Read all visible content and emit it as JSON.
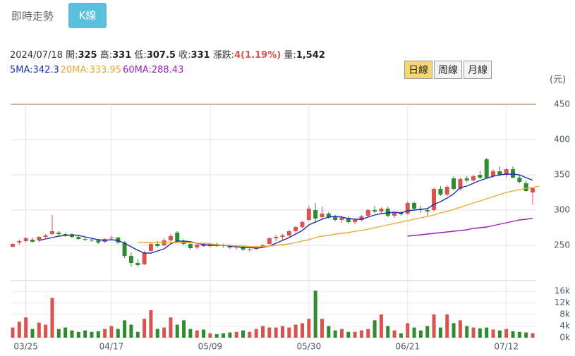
{
  "header": {
    "tabs": [
      "即時走勢",
      "K線"
    ],
    "active_tab": 1,
    "quote": {
      "date": "2024/07/18",
      "items": [
        {
          "label": "開:",
          "value": "325"
        },
        {
          "label": "高:",
          "value": "331"
        },
        {
          "label": "低:",
          "value": "307.5"
        },
        {
          "label": "收:",
          "value": "331"
        },
        {
          "label": "漲跌:",
          "value": "4(1.19%)"
        },
        {
          "label": "量:",
          "value": "1,542"
        }
      ]
    },
    "periods": [
      "日線",
      "周線",
      "月線"
    ],
    "active_period": 0,
    "unit": "(元)"
  },
  "chart_data": [
    {
      "type": "candlestick",
      "up_color": "#d9534f",
      "down_color": "#2e8b2e",
      "open": [
        248,
        254,
        256,
        258,
        257,
        262,
        266,
        268,
        266,
        265,
        262,
        259,
        258,
        257,
        255,
        260,
        261,
        254,
        235,
        225,
        223,
        242,
        252,
        250,
        257,
        268,
        256,
        252,
        247,
        251,
        249,
        252,
        250,
        249,
        247,
        247,
        244,
        245,
        248,
        252,
        260,
        262,
        264,
        270,
        276,
        286,
        300,
        290,
        295,
        290,
        286,
        289,
        283,
        286,
        292,
        300,
        298,
        302,
        292,
        296,
        295,
        310,
        302,
        300,
        300,
        330,
        322,
        345,
        330,
        345,
        342,
        350,
        372,
        348,
        355,
        350,
        358,
        346,
        338,
        325
      ],
      "high": [
        253,
        258,
        262,
        261,
        263,
        266,
        293,
        270,
        268,
        267,
        264,
        262,
        260,
        259,
        260,
        263,
        262,
        256,
        240,
        230,
        242,
        255,
        256,
        260,
        266,
        270,
        258,
        256,
        253,
        253,
        254,
        254,
        252,
        251,
        250,
        249,
        247,
        249,
        252,
        262,
        265,
        266,
        272,
        278,
        285,
        306,
        310,
        305,
        297,
        293,
        292,
        291,
        288,
        293,
        302,
        306,
        304,
        305,
        298,
        299,
        312,
        312,
        306,
        303,
        332,
        334,
        335,
        348,
        346,
        348,
        350,
        356,
        374,
        358,
        362,
        360,
        362,
        350,
        342,
        331
      ],
      "low": [
        247,
        251,
        254,
        254,
        255,
        260,
        264,
        264,
        262,
        260,
        258,
        256,
        255,
        252,
        253,
        257,
        252,
        232,
        220,
        219,
        222,
        241,
        247,
        249,
        255,
        254,
        250,
        244,
        245,
        248,
        247,
        248,
        247,
        245,
        244,
        242,
        241,
        243,
        246,
        251,
        256,
        258,
        262,
        268,
        274,
        284,
        282,
        286,
        288,
        284,
        282,
        281,
        280,
        284,
        290,
        296,
        294,
        290,
        289,
        292,
        293,
        300,
        296,
        292,
        298,
        320,
        320,
        328,
        328,
        340,
        340,
        344,
        344,
        346,
        348,
        346,
        345,
        338,
        326,
        307.5
      ],
      "close": [
        252,
        256,
        260,
        255,
        262,
        264,
        270,
        266,
        265,
        262,
        259,
        258,
        257,
        254,
        259,
        261,
        254,
        235,
        225,
        222,
        240,
        252,
        249,
        257,
        263,
        256,
        252,
        246,
        251,
        249,
        252,
        250,
        249,
        247,
        248,
        244,
        245,
        247,
        250,
        260,
        262,
        264,
        270,
        276,
        283,
        302,
        288,
        295,
        290,
        286,
        289,
        283,
        286,
        291,
        300,
        298,
        302,
        292,
        296,
        294,
        310,
        302,
        300,
        298,
        330,
        322,
        333,
        330,
        344,
        342,
        348,
        346,
        346,
        355,
        350,
        358,
        346,
        340,
        327,
        331
      ],
      "ylim": [
        200,
        450
      ],
      "yticks": [
        250,
        300,
        350,
        400,
        450
      ],
      "grid": true,
      "series": [
        {
          "name": "5MA:342.3",
          "color": "#1a2fb0",
          "values": [
            null,
            null,
            null,
            null,
            257,
            259,
            261,
            263,
            264,
            265,
            264,
            262,
            260,
            258,
            257,
            258,
            257,
            253,
            248,
            243,
            239,
            239,
            242,
            245,
            252,
            256,
            256,
            255,
            253,
            251,
            250,
            250,
            250,
            249,
            248,
            247,
            247,
            246,
            247,
            249,
            253,
            257,
            261,
            266,
            271,
            279,
            283,
            287,
            290,
            291,
            290,
            288,
            287,
            287,
            290,
            293,
            295,
            296,
            297,
            296,
            299,
            300,
            301,
            302,
            308,
            312,
            317,
            323,
            332,
            334,
            338,
            342,
            345,
            348,
            350,
            351,
            351,
            350,
            346,
            342.3
          ]
        },
        {
          "name": "20MA:333.95",
          "color": "#f0a830",
          "values": [
            null,
            null,
            null,
            null,
            null,
            null,
            null,
            null,
            null,
            null,
            null,
            null,
            null,
            null,
            null,
            null,
            null,
            null,
            null,
            254,
            254,
            254,
            254,
            254,
            254,
            254,
            254,
            254,
            253,
            253,
            252,
            251,
            250,
            250,
            249,
            249,
            248,
            248,
            248,
            249,
            250,
            251,
            252,
            254,
            256,
            258,
            261,
            263,
            264,
            266,
            267,
            268,
            270,
            271,
            273,
            275,
            277,
            279,
            281,
            283,
            285,
            287,
            289,
            291,
            293,
            296,
            298,
            301,
            304,
            307,
            310,
            313,
            316,
            319,
            322,
            325,
            327,
            329,
            331,
            332,
            333.95
          ]
        },
        {
          "name": "60MA:288.43",
          "color": "#9a20b8",
          "values": [
            null,
            null,
            null,
            null,
            null,
            null,
            null,
            null,
            null,
            null,
            null,
            null,
            null,
            null,
            null,
            null,
            null,
            null,
            null,
            null,
            null,
            null,
            null,
            null,
            null,
            null,
            null,
            null,
            null,
            null,
            null,
            null,
            null,
            null,
            null,
            null,
            null,
            null,
            null,
            null,
            null,
            null,
            null,
            null,
            null,
            null,
            null,
            null,
            null,
            null,
            null,
            null,
            null,
            null,
            null,
            null,
            null,
            null,
            null,
            null,
            263,
            264,
            265,
            266,
            267,
            268,
            269,
            270,
            271,
            272,
            274,
            275,
            276,
            278,
            280,
            282,
            284,
            286,
            287,
            288.43
          ]
        }
      ]
    },
    {
      "type": "bar",
      "categories": [
        null,
        null,
        "03/25",
        null,
        null,
        null,
        null,
        null,
        null,
        null,
        null,
        null,
        null,
        null,
        null,
        "04/17",
        null,
        null,
        null,
        null,
        null,
        null,
        null,
        null,
        null,
        null,
        null,
        null,
        null,
        null,
        "05/09",
        null,
        null,
        null,
        null,
        null,
        null,
        null,
        null,
        null,
        null,
        null,
        null,
        null,
        null,
        "05/30",
        null,
        null,
        null,
        null,
        null,
        null,
        null,
        null,
        null,
        null,
        null,
        null,
        null,
        null,
        "06/21",
        null,
        null,
        null,
        null,
        null,
        null,
        null,
        null,
        null,
        null,
        null,
        null,
        null,
        null,
        "07/12",
        null,
        null,
        null,
        null
      ],
      "values": [
        3500,
        5500,
        7000,
        3000,
        5200,
        4500,
        13700,
        3000,
        3500,
        2500,
        2000,
        2500,
        2000,
        2200,
        3000,
        4000,
        3000,
        6000,
        4500,
        2000,
        6500,
        9500,
        3000,
        3500,
        7000,
        4500,
        6000,
        3000,
        2500,
        2800,
        1500,
        1200,
        1500,
        1800,
        2000,
        2500,
        2000,
        3000,
        4000,
        3500,
        3500,
        4000,
        3500,
        4500,
        5000,
        6500,
        16200,
        6500,
        4000,
        2500,
        3000,
        2000,
        2000,
        2500,
        3000,
        6000,
        8000,
        4000,
        2500,
        1500,
        5000,
        3500,
        2500,
        4000,
        8000,
        3500,
        8000,
        5000,
        6000,
        4000,
        3500,
        3200,
        3500,
        2800,
        2500,
        3000,
        2200,
        2000,
        1800,
        1542
      ],
      "ylim": [
        0,
        18000
      ],
      "yticks": [
        {
          "value": 0,
          "label": "0k"
        },
        {
          "value": 4000,
          "label": "4k"
        },
        {
          "value": 8000,
          "label": "8k"
        },
        {
          "value": 12000,
          "label": "12k"
        },
        {
          "value": 16000,
          "label": "16k"
        }
      ],
      "grid": true
    }
  ]
}
